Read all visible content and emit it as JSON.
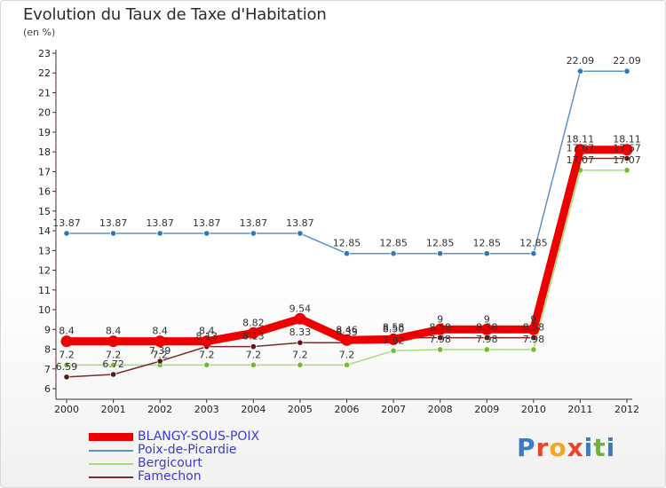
{
  "header": {
    "title": "Evolution du Taux de Taxe d'Habitation",
    "unit_label": "(en %)"
  },
  "brand": {
    "letters": [
      "P",
      "r",
      "o",
      "x",
      "i",
      "t",
      "i"
    ],
    "colors": [
      "#3a7cc4",
      "#e6452e",
      "#f2a81d",
      "#e6452e",
      "#3a7cc4",
      "#6cb33e",
      "#3a7cc4"
    ]
  },
  "chart_data": {
    "type": "line",
    "title": "Evolution du Taux de Taxe d'Habitation",
    "ylabel": "(en %)",
    "xlabel": "",
    "x": [
      "2000",
      "2001",
      "2002",
      "2003",
      "2004",
      "2005",
      "2006",
      "2007",
      "2008",
      "2009",
      "2010",
      "2011",
      "2012"
    ],
    "ylim": [
      6,
      23
    ],
    "yticks": [
      "6",
      "7",
      "8",
      "9",
      "10",
      "11",
      "12",
      "13",
      "14",
      "15",
      "16",
      "17",
      "18",
      "19",
      "20",
      "21",
      "22",
      "23"
    ],
    "grid": false,
    "legend_position": "bottom-left",
    "series": [
      {
        "name": "Poix-de-Picardie",
        "color": "#5b93c7",
        "marker": "#2f78b8",
        "values": [
          13.87,
          13.87,
          13.87,
          13.87,
          13.87,
          13.87,
          12.85,
          12.85,
          12.85,
          12.85,
          12.85,
          22.09,
          22.09
        ],
        "labels": [
          "13.87",
          "13.87",
          "13.87",
          "13.87",
          "13.87",
          "13.87",
          "12.85",
          "12.85",
          "12.85",
          "12.85",
          "12.85",
          "22.09",
          "22.09"
        ]
      },
      {
        "name": "Bergicourt",
        "color": "#a6dc74",
        "marker": "#6fbf2c",
        "values": [
          7.2,
          7.2,
          7.2,
          7.2,
          7.2,
          7.2,
          7.2,
          7.92,
          7.98,
          7.98,
          7.98,
          17.07,
          17.07
        ],
        "labels": [
          "7.2",
          "7.2",
          "7.2",
          "7.2",
          "7.2",
          "7.2",
          "7.2",
          "7.92",
          "7.98",
          "7.98",
          "7.98",
          "17.07",
          "17.07"
        ]
      },
      {
        "name": "Famechon",
        "color": "#7a2c2c",
        "marker": "#5a1414",
        "values": [
          6.59,
          6.72,
          7.39,
          8.13,
          8.13,
          8.33,
          8.33,
          8.58,
          8.58,
          8.58,
          8.58,
          17.67,
          17.67
        ],
        "labels": [
          "6.59",
          "6.72",
          "7.39",
          "8.13",
          "8.13",
          "8.33",
          "8.33",
          "8.58",
          "8.58",
          "8.58",
          "8.58",
          "17.67",
          "17.67"
        ]
      },
      {
        "name": "BLANGY-SOUS-POIX",
        "color": "#ee0000",
        "marker": "#ee0000",
        "thick": true,
        "values": [
          8.4,
          8.4,
          8.4,
          8.4,
          8.82,
          9.54,
          8.46,
          8.5,
          9.0,
          9.0,
          9.0,
          18.11,
          18.11
        ],
        "labels": [
          "8.4",
          "8.4",
          "8.4",
          "8.4",
          "8.82",
          "9.54",
          "8.46",
          "8.50",
          "9",
          "9",
          "9",
          "18.11",
          "18.11"
        ]
      }
    ],
    "legend": [
      "BLANGY-SOUS-POIX",
      "Poix-de-Picardie",
      "Bergicourt",
      "Famechon"
    ]
  }
}
